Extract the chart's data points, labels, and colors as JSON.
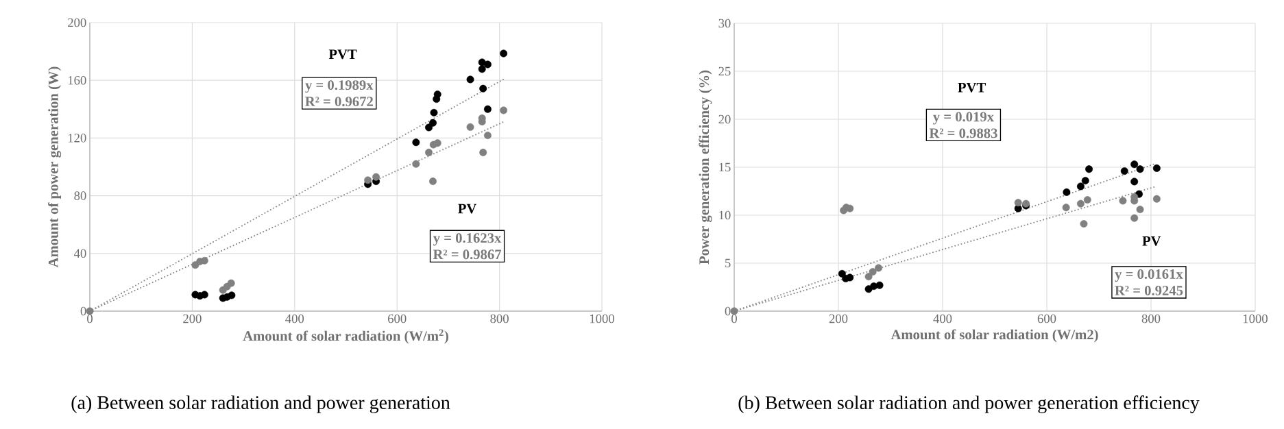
{
  "chart_data": [
    {
      "type": "scatter",
      "xlabel": "Amount of solar radiation (W/m$^{2}$)",
      "ylabel": "Amount of power generation (W)",
      "xlim": [
        0,
        1000
      ],
      "ylim": [
        0,
        200
      ],
      "xticks": [
        0,
        200,
        400,
        600,
        800,
        1000
      ],
      "yticks": [
        0,
        40,
        80,
        120,
        160,
        200
      ],
      "grid": true,
      "series": [
        {
          "marker": "circle",
          "color": "#000000",
          "x": [
            206,
            215,
            224,
            260,
            268,
            277,
            543,
            559,
            637,
            662,
            670,
            672,
            677,
            679,
            743,
            766,
            766,
            768,
            777,
            777,
            808
          ],
          "values": [
            11.4,
            10.6,
            11.4,
            9,
            9.8,
            11,
            88,
            90,
            117,
            127.3,
            130.5,
            137.6,
            147,
            150.3,
            160.6,
            172.5,
            167.8,
            154.3,
            171,
            140,
            178.6
          ]
        },
        {
          "marker": "circle",
          "color": "#808080",
          "x": [
            0,
            206,
            215,
            224,
            260,
            268,
            276,
            543,
            559,
            637,
            662,
            670,
            671,
            679,
            743,
            766,
            766,
            768,
            777,
            808
          ],
          "values": [
            0,
            32,
            34.4,
            35,
            14.6,
            17,
            19.4,
            90.8,
            93,
            102,
            110,
            90,
            115.4,
            116.5,
            127.6,
            133.7,
            131.3,
            110,
            121.8,
            139.2
          ]
        },
        {
          "type": "line",
          "line_style": "dotted",
          "color": "#8c8c8c",
          "x": [
            0,
            810
          ],
          "values": [
            0,
            161.1
          ]
        },
        {
          "type": "line",
          "line_style": "dotted",
          "color": "#8c8c8c",
          "x": [
            0,
            810
          ],
          "values": [
            0,
            131.5
          ]
        }
      ],
      "annotations": [
        "PVT",
        "y = 0.1989x",
        "R² = 0.9672",
        "PV",
        "y = 0.1623x",
        "R² = 0.9867",
        "(a) Between solar radiation and power generation"
      ]
    },
    {
      "type": "scatter",
      "xlabel": "Amount of solar radiation (W/m2)",
      "ylabel": "Power generation efficiency (%)",
      "xlim": [
        0,
        1000
      ],
      "ylim": [
        0,
        30
      ],
      "xticks": [
        0,
        200,
        400,
        600,
        800,
        1000
      ],
      "yticks": [
        0,
        5,
        10,
        15,
        20,
        25,
        30
      ],
      "grid": true,
      "series": [
        {
          "marker": "circle",
          "color": "#000000",
          "x": [
            207,
            214,
            222,
            258,
            268,
            279,
            545,
            560,
            638,
            665,
            674,
            681,
            749,
            768,
            768,
            779,
            777,
            811
          ],
          "values": [
            3.9,
            3.4,
            3.5,
            2.3,
            2.6,
            2.7,
            10.7,
            11.0,
            12.4,
            13.0,
            13.6,
            14.8,
            14.6,
            15.3,
            13.5,
            14.8,
            12.2,
            14.9
          ]
        },
        {
          "marker": "circle",
          "color": "#808080",
          "x": [
            0,
            210,
            215,
            222,
            258,
            266,
            277,
            545,
            560,
            637,
            665,
            671,
            678,
            746,
            768,
            768,
            768,
            779,
            811
          ],
          "values": [
            0,
            10.5,
            10.8,
            10.7,
            3.6,
            4.1,
            4.5,
            11.3,
            11.2,
            10.8,
            11.2,
            9.1,
            11.6,
            11.5,
            11.9,
            11.5,
            9.7,
            10.6,
            11.7
          ]
        },
        {
          "type": "line",
          "line_style": "dotted",
          "color": "#8c8c8c",
          "x": [
            0,
            810
          ],
          "values": [
            0,
            15.4
          ]
        },
        {
          "type": "line",
          "line_style": "dotted",
          "color": "#8c8c8c",
          "x": [
            0,
            810
          ],
          "values": [
            0,
            13.0
          ]
        }
      ],
      "annotations": [
        "PVT",
        "y = 0.019x",
        "R² = 0.9883",
        "PV",
        "y = 0.0161x",
        "R² = 0.9245",
        "(b) Between solar radiation and power generation efficiency"
      ]
    }
  ]
}
